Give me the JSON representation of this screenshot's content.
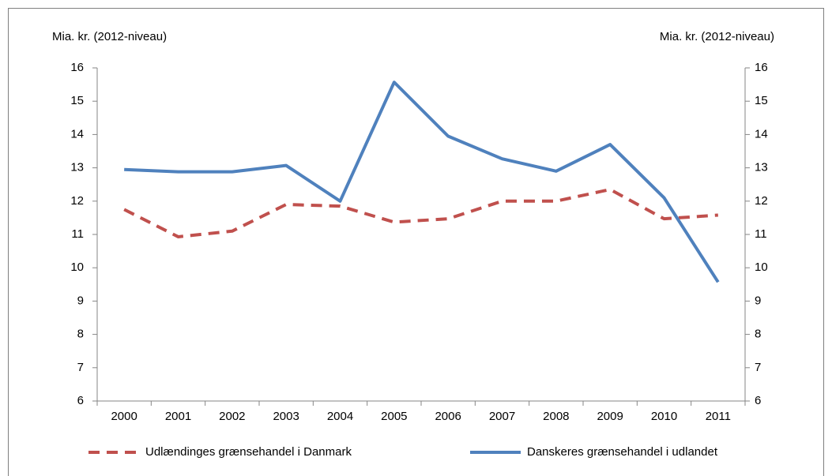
{
  "chart_data": {
    "type": "line",
    "y_label": "Mia. kr. (2012-niveau)",
    "y2_label": "Mia. kr. (2012-niveau)",
    "categories": [
      "2000",
      "2001",
      "2002",
      "2003",
      "2004",
      "2005",
      "2006",
      "2007",
      "2008",
      "2009",
      "2010",
      "2011"
    ],
    "series": [
      {
        "name": "Udlændinges grænsehandel i Danmark",
        "color": "#c0504d",
        "dash": true,
        "values": [
          11.75,
          10.93,
          11.1,
          11.9,
          11.85,
          11.37,
          11.47,
          12.0,
          12.0,
          12.35,
          11.47,
          11.58
        ]
      },
      {
        "name": "Danskeres grænsehandel i udlandet",
        "color": "#4f81bd",
        "dash": false,
        "values": [
          12.95,
          12.88,
          12.88,
          13.07,
          12.0,
          15.57,
          13.95,
          13.27,
          12.9,
          13.7,
          12.1,
          9.57
        ]
      }
    ],
    "ylim": [
      6,
      16
    ],
    "yticks": [
      6,
      7,
      8,
      9,
      10,
      11,
      12,
      13,
      14,
      15,
      16
    ],
    "y2lim": [
      6,
      16
    ],
    "y2ticks": [
      6,
      7,
      8,
      9,
      10,
      11,
      12,
      13,
      14,
      15,
      16
    ],
    "grid": false
  }
}
